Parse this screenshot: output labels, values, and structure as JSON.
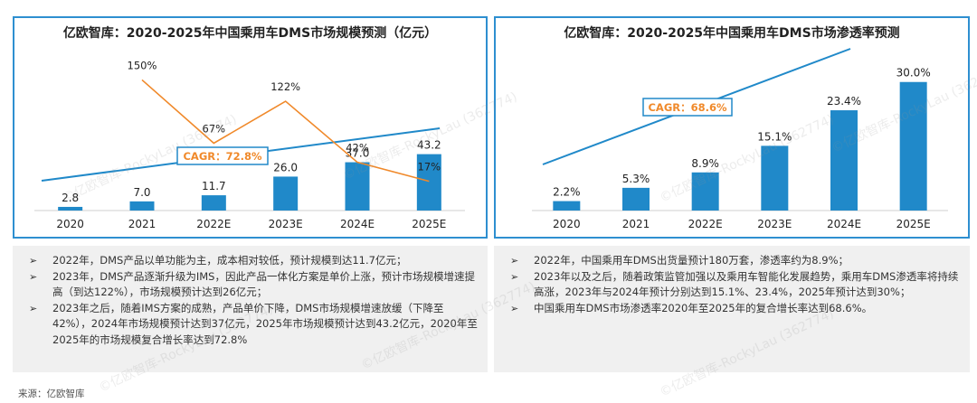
{
  "chart_data": [
    {
      "type": "bar",
      "title": "亿欧智库：2020-2025年中国乘用车DMS市场规模预测（亿元）",
      "categories": [
        "2020",
        "2021",
        "2022E",
        "2023E",
        "2024E",
        "2025E"
      ],
      "values": [
        2.8,
        7.0,
        11.7,
        26.0,
        37.0,
        43.2
      ],
      "value_labels": [
        "2.8",
        "7.0",
        "11.7",
        "26.0",
        "37.0",
        "43.2"
      ],
      "growth_rates": [
        150,
        67,
        122,
        42,
        17
      ],
      "growth_labels": [
        "150%",
        "67%",
        "122%",
        "42%",
        "17%"
      ],
      "growth_categories": [
        "2021",
        "2022E",
        "2023E",
        "2024E",
        "2025E"
      ],
      "cagr_label": "CAGR：72.8%",
      "ylim": [
        0,
        45
      ],
      "colors": {
        "bar": "#2089c9",
        "growth_line": "#f0892a",
        "cagr": "#2089c9",
        "cagr_text": "#f0892a"
      }
    },
    {
      "type": "bar",
      "title": "亿欧智库：2020-2025年中国乘用车DMS市场渗透率预测",
      "categories": [
        "2020",
        "2021",
        "2022E",
        "2023E",
        "2024E",
        "2025E"
      ],
      "values": [
        2.2,
        5.3,
        8.9,
        15.1,
        23.4,
        30.0
      ],
      "value_labels": [
        "2.2%",
        "5.3%",
        "8.9%",
        "15.1%",
        "23.4%",
        "30.0%"
      ],
      "cagr_label": "CAGR：68.6%",
      "ylim": [
        0,
        31
      ],
      "colors": {
        "bar": "#2089c9",
        "cagr": "#2089c9",
        "cagr_text": "#f0892a"
      }
    }
  ],
  "notes": {
    "left": [
      "2022年，DMS产品以单功能为主，成本相对较低，预计规模到达11.7亿元；",
      "2023年，DMS产品逐渐升级为IMS，因此产品一体化方案是单价上涨，预计市场规模增速提高（到达122%），市场规模预计达到26亿元；",
      "2023年之后，随着IMS方案的成熟，产品单价下降，DMS市场规模增速放缓（下降至42%），2024年市场规模预计达到37亿元，2025年市场规模预计达到43.2亿元，2020年至2025年的市场规模复合增长率达到72.8%"
    ],
    "right": [
      "2022年，中国乘用车DMS出货量预计180万套，渗透率约为8.9%；",
      "2023年以及之后，随着政策监管加强以及乘用车智能化发展趋势，乘用车DMS渗透率将持续高涨，2023年与2024年预计分别达到15.1%、23.4%，2025年预计达到30%；",
      "中国乘用车DMS市场渗透率2020年至2025年的复合增长率达到68.6%。"
    ]
  },
  "bullet_icon": "arrow-bullet-icon",
  "source": "来源：亿欧智库",
  "watermark": "©亿欧智库-RockyLau (362774)"
}
